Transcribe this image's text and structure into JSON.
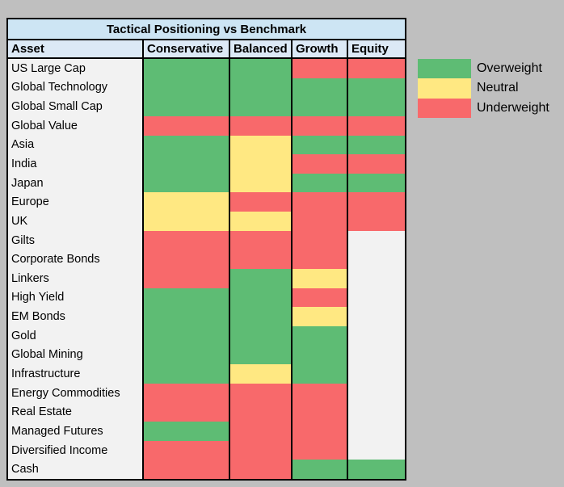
{
  "title": "Tactical Positioning vs Benchmark",
  "columns": [
    "Asset",
    "Conservative",
    "Balanced",
    "Growth",
    "Equity"
  ],
  "legend": {
    "items": [
      {
        "label": "Overweight",
        "state": "overweight"
      },
      {
        "label": "Neutral",
        "state": "neutral"
      },
      {
        "label": "Underweight",
        "state": "underweight"
      }
    ]
  },
  "colors": {
    "overweight": "#5ebc74",
    "neutral": "#ffe882",
    "underweight": "#f8696b",
    "empty": "#f2f2f2",
    "title_bg": "#cde5f4",
    "header_bg": "#dce9f6",
    "label_bg": "#f2f2f2",
    "background": "#bfbfbf",
    "border": "#000000"
  },
  "chart_data": {
    "type": "heatmap",
    "title": "Tactical Positioning vs Benchmark",
    "x_categories": [
      "Conservative",
      "Balanced",
      "Growth",
      "Equity"
    ],
    "y_categories": [
      "US Large Cap",
      "Global Technology",
      "Global Small Cap",
      "Global Value",
      "Asia",
      "India",
      "Japan",
      "Europe",
      "UK",
      "Gilts",
      "Corporate Bonds",
      "Linkers",
      "High Yield",
      "EM Bonds",
      "Gold",
      "Global Mining",
      "Infrastructure",
      "Energy Commodities",
      "Real Estate",
      "Managed Futures",
      "Diversified Income",
      "Cash"
    ],
    "values": [
      [
        "overweight",
        "overweight",
        "underweight",
        "underweight"
      ],
      [
        "overweight",
        "overweight",
        "overweight",
        "overweight"
      ],
      [
        "overweight",
        "overweight",
        "overweight",
        "overweight"
      ],
      [
        "underweight",
        "underweight",
        "underweight",
        "underweight"
      ],
      [
        "overweight",
        "neutral",
        "overweight",
        "overweight"
      ],
      [
        "overweight",
        "neutral",
        "underweight",
        "underweight"
      ],
      [
        "overweight",
        "neutral",
        "overweight",
        "overweight"
      ],
      [
        "neutral",
        "underweight",
        "underweight",
        "underweight"
      ],
      [
        "neutral",
        "neutral",
        "underweight",
        "underweight"
      ],
      [
        "underweight",
        "underweight",
        "underweight",
        ""
      ],
      [
        "underweight",
        "underweight",
        "underweight",
        ""
      ],
      [
        "underweight",
        "overweight",
        "neutral",
        ""
      ],
      [
        "overweight",
        "overweight",
        "underweight",
        ""
      ],
      [
        "overweight",
        "overweight",
        "neutral",
        ""
      ],
      [
        "overweight",
        "overweight",
        "overweight",
        ""
      ],
      [
        "overweight",
        "overweight",
        "overweight",
        ""
      ],
      [
        "overweight",
        "neutral",
        "overweight",
        ""
      ],
      [
        "underweight",
        "underweight",
        "underweight",
        ""
      ],
      [
        "underweight",
        "underweight",
        "underweight",
        ""
      ],
      [
        "overweight",
        "underweight",
        "underweight",
        ""
      ],
      [
        "underweight",
        "underweight",
        "underweight",
        ""
      ],
      [
        "underweight",
        "underweight",
        "overweight",
        "overweight"
      ]
    ],
    "legend_entries": [
      "Overweight",
      "Neutral",
      "Underweight"
    ],
    "value_meaning": {
      "overweight": "green",
      "neutral": "yellow",
      "underweight": "red",
      "": "no allocation"
    }
  }
}
